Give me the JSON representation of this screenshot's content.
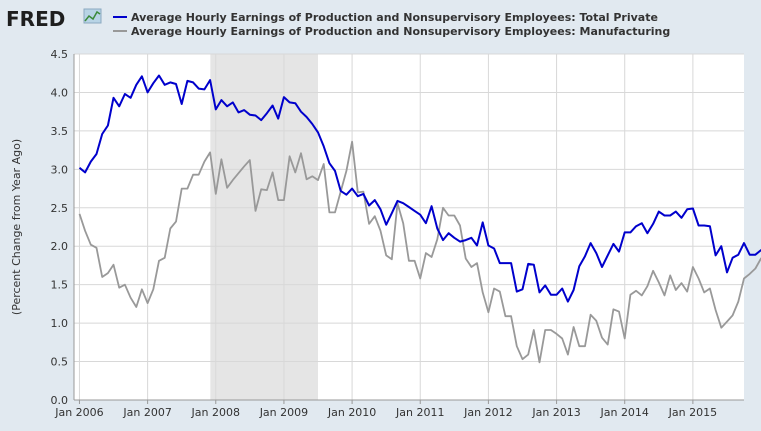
{
  "logo": {
    "text": "FRED"
  },
  "colors": {
    "total_private": "#0000cc",
    "manufacturing": "#999999",
    "recession": "#e5e5e5",
    "background": "#e1e9f0",
    "plot": "#ffffff",
    "grid": "#d8d8d8"
  },
  "chart_data": {
    "type": "line",
    "title": "",
    "xlabel": "",
    "ylabel": "(Percent Change from Year Ago)",
    "xlim": [
      2005.92,
      2015.75
    ],
    "ylim": [
      0,
      4.5
    ],
    "y_ticks": [
      0.0,
      0.5,
      1.0,
      1.5,
      2.0,
      2.5,
      3.0,
      3.5,
      4.0,
      4.5
    ],
    "y_tick_labels": [
      "0.0",
      "0.5",
      "1.0",
      "1.5",
      "2.0",
      "2.5",
      "3.0",
      "3.5",
      "4.0",
      "4.5"
    ],
    "x_ticks": [
      2006,
      2007,
      2008,
      2009,
      2010,
      2011,
      2012,
      2013,
      2014,
      2015
    ],
    "x_tick_labels": [
      "Jan 2006",
      "Jan 2007",
      "Jan 2008",
      "Jan 2009",
      "Jan 2010",
      "Jan 2011",
      "Jan 2012",
      "Jan 2013",
      "Jan 2014",
      "Jan 2015"
    ],
    "grid": true,
    "legend_position": "top",
    "shaded_periods": [
      {
        "start": 2007.92,
        "end": 2009.5
      }
    ],
    "series": [
      {
        "name": "Average Hourly Earnings of Production and Nonsupervisory Employees: Total Private",
        "color": "#0000cc",
        "x_start": 2006.0,
        "x_step": 0.0833333,
        "values": [
          3.02,
          2.96,
          3.1,
          3.2,
          3.46,
          3.57,
          3.93,
          3.82,
          3.98,
          3.93,
          4.1,
          4.21,
          4.0,
          4.12,
          4.22,
          4.1,
          4.13,
          4.11,
          3.85,
          4.15,
          4.13,
          4.05,
          4.04,
          4.16,
          3.78,
          3.9,
          3.82,
          3.87,
          3.74,
          3.77,
          3.71,
          3.7,
          3.64,
          3.73,
          3.83,
          3.66,
          3.94,
          3.87,
          3.86,
          3.75,
          3.68,
          3.59,
          3.48,
          3.3,
          3.08,
          2.98,
          2.72,
          2.67,
          2.75,
          2.65,
          2.68,
          2.53,
          2.6,
          2.48,
          2.28,
          2.43,
          2.59,
          2.56,
          2.51,
          2.46,
          2.41,
          2.3,
          2.52,
          2.23,
          2.08,
          2.17,
          2.11,
          2.06,
          2.08,
          2.11,
          2.01,
          2.31,
          2.01,
          1.97,
          1.78,
          1.78,
          1.78,
          1.41,
          1.44,
          1.77,
          1.76,
          1.4,
          1.49,
          1.37,
          1.37,
          1.45,
          1.28,
          1.43,
          1.74,
          1.87,
          2.04,
          1.91,
          1.73,
          1.88,
          2.03,
          1.93,
          2.18,
          2.18,
          2.26,
          2.3,
          2.17,
          2.29,
          2.45,
          2.4,
          2.4,
          2.45,
          2.37,
          2.48,
          2.49,
          2.27,
          2.27,
          2.26,
          1.88,
          2.0,
          1.66,
          1.85,
          1.89,
          2.04,
          1.89,
          1.89,
          1.95,
          1.94
        ]
      },
      {
        "name": "Average Hourly Earnings of Production and Nonsupervisory Employees: Manufacturing",
        "color": "#999999",
        "x_start": 2006.0,
        "x_step": 0.0833333,
        "values": [
          2.42,
          2.2,
          2.02,
          1.98,
          1.6,
          1.65,
          1.76,
          1.46,
          1.5,
          1.33,
          1.21,
          1.44,
          1.26,
          1.44,
          1.81,
          1.85,
          2.23,
          2.32,
          2.75,
          2.75,
          2.93,
          2.93,
          3.1,
          3.22,
          2.68,
          3.13,
          2.76,
          2.86,
          2.95,
          3.04,
          3.12,
          2.46,
          2.74,
          2.73,
          2.96,
          2.6,
          2.6,
          3.17,
          2.96,
          3.21,
          2.87,
          2.91,
          2.86,
          3.07,
          2.44,
          2.44,
          2.71,
          2.98,
          3.36,
          2.7,
          2.71,
          2.29,
          2.39,
          2.2,
          1.88,
          1.83,
          2.56,
          2.3,
          1.81,
          1.81,
          1.58,
          1.91,
          1.86,
          2.09,
          2.5,
          2.4,
          2.4,
          2.27,
          1.84,
          1.73,
          1.78,
          1.4,
          1.14,
          1.45,
          1.41,
          1.09,
          1.09,
          0.7,
          0.53,
          0.59,
          0.91,
          0.49,
          0.91,
          0.91,
          0.86,
          0.8,
          0.59,
          0.95,
          0.7,
          0.7,
          1.11,
          1.03,
          0.81,
          0.72,
          1.18,
          1.15,
          0.8,
          1.37,
          1.42,
          1.36,
          1.48,
          1.68,
          1.53,
          1.36,
          1.62,
          1.43,
          1.52,
          1.41,
          1.73,
          1.58,
          1.4,
          1.45,
          1.17,
          0.94,
          1.02,
          1.1,
          1.28,
          1.58,
          1.64,
          1.71,
          1.84,
          1.89,
          2.14
        ]
      }
    ]
  }
}
